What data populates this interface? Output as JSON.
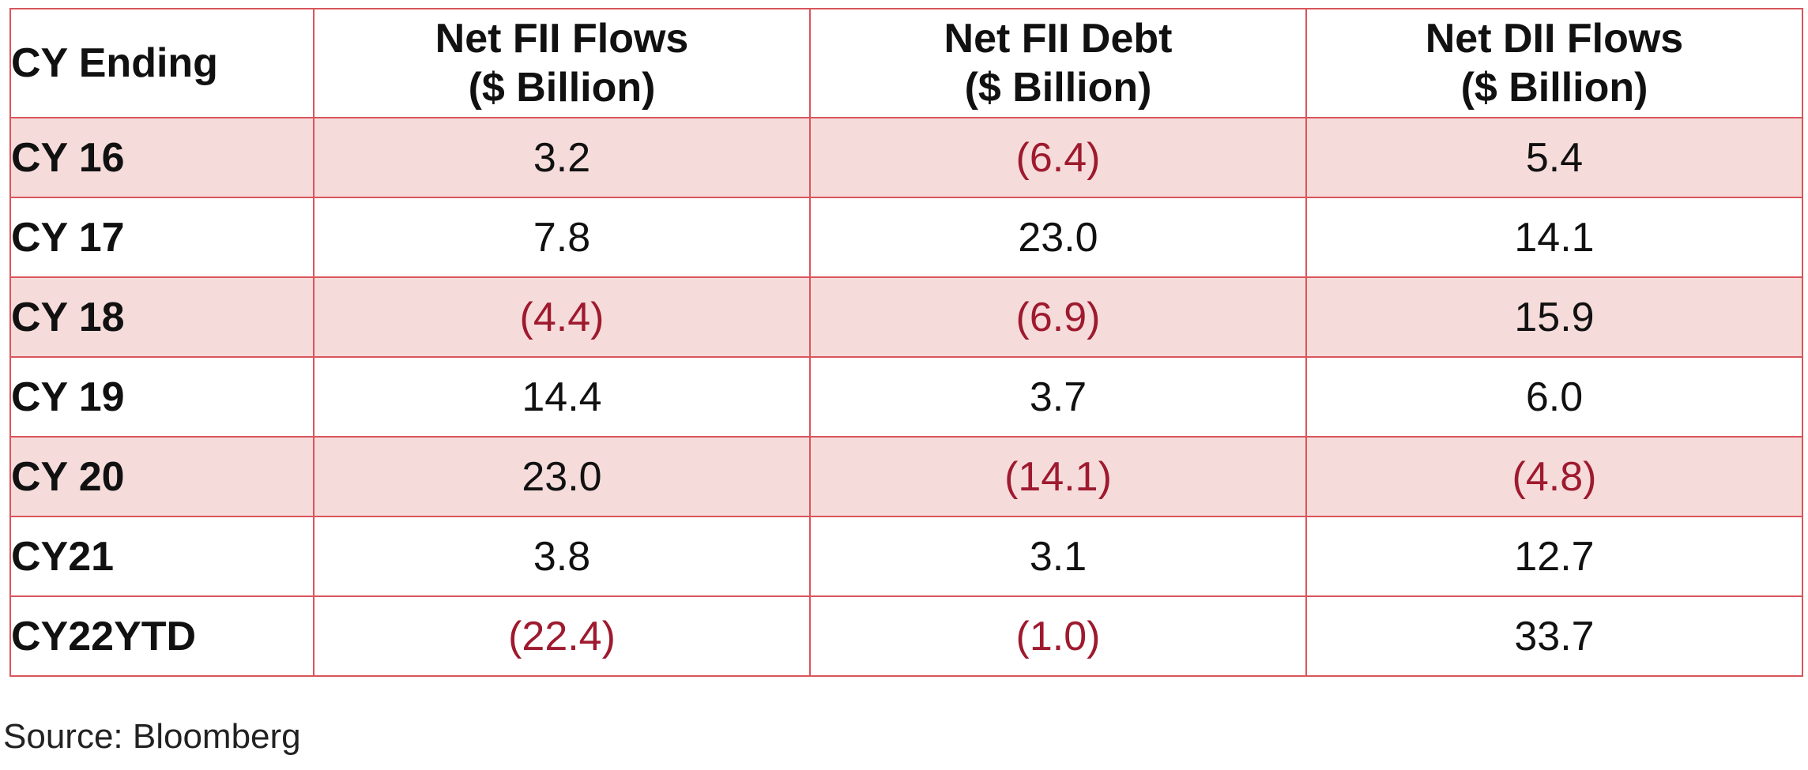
{
  "chart_data": {
    "type": "table",
    "columns": [
      {
        "line1": "CY Ending",
        "line2": ""
      },
      {
        "line1": "Net FII Flows",
        "line2": "($ Billion)"
      },
      {
        "line1": "Net FII Debt",
        "line2": "($ Billion)"
      },
      {
        "line1": "Net DII Flows",
        "line2": "($ Billion)"
      }
    ],
    "rows": [
      {
        "label": "CY 16",
        "cells": [
          "3.2",
          "(6.4)",
          "5.4"
        ]
      },
      {
        "label": "CY 17",
        "cells": [
          "7.8",
          "23.0",
          "14.1"
        ]
      },
      {
        "label": "CY 18",
        "cells": [
          "(4.4)",
          "(6.9)",
          "15.9"
        ]
      },
      {
        "label": "CY 19",
        "cells": [
          "14.4",
          "3.7",
          "6.0"
        ]
      },
      {
        "label": "CY 20",
        "cells": [
          "23.0",
          "(14.1)",
          "(4.8)"
        ]
      },
      {
        "label": "CY21",
        "cells": [
          "3.8",
          "3.1",
          "12.7"
        ]
      },
      {
        "label": "CY22YTD",
        "cells": [
          "(22.4)",
          "(1.0)",
          "33.7"
        ]
      }
    ],
    "values": [
      [
        3.2,
        -6.4,
        5.4
      ],
      [
        7.8,
        23.0,
        14.1
      ],
      [
        -4.4,
        -6.9,
        15.9
      ],
      [
        14.4,
        3.7,
        6.0
      ],
      [
        23.0,
        -14.1,
        -4.8
      ],
      [
        3.8,
        3.1,
        12.7
      ],
      [
        -22.4,
        -1.0,
        33.7
      ]
    ],
    "source": "Source: Bloomberg"
  },
  "colors": {
    "border": "#d9555c",
    "shaded_row": "#f6dbdb",
    "negative_text": "#9e1a2e"
  }
}
